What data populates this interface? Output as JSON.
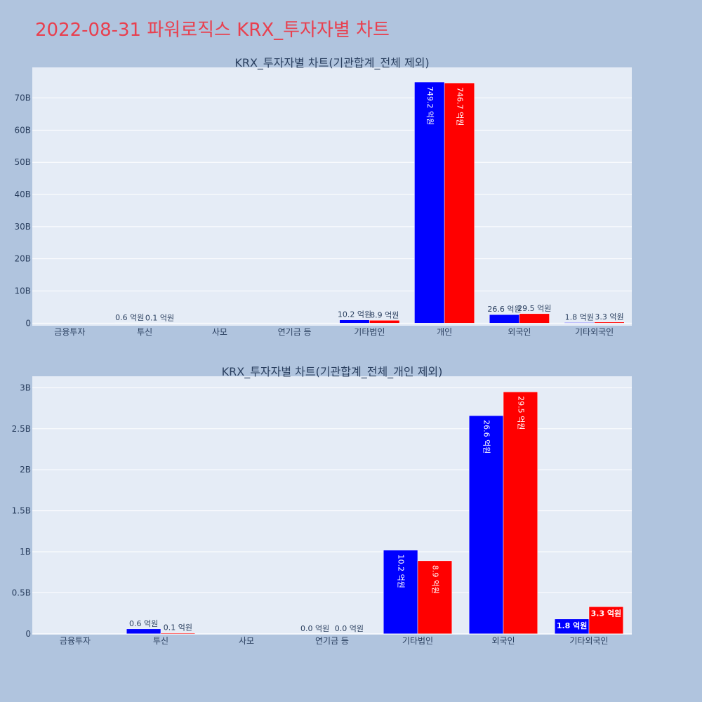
{
  "page_title": "2022-08-31 파워로직스 KRX_투자자별 차트",
  "colors": {
    "background": "#b0c4de",
    "plot_bg": "#e5ecf6",
    "series_buy": "#0000ff",
    "series_sell": "#ff0000",
    "title": "#e8404f"
  },
  "chart_data": [
    {
      "type": "bar",
      "title": "KRX_투자자별 차트(기관합계_전체 제외)",
      "categories": [
        "금융투자",
        "투신",
        "사모",
        "연기금 등",
        "기타법인",
        "개인",
        "외국인",
        "기타외국인"
      ],
      "ylim": [
        -0.8,
        79.5
      ],
      "yticks": [
        0,
        10,
        20,
        30,
        40,
        50,
        60,
        70
      ],
      "ytick_labels": [
        "0",
        "10B",
        "20B",
        "30B",
        "40B",
        "50B",
        "60B",
        "70B"
      ],
      "series": [
        {
          "values": [
            0,
            0.06,
            0,
            0,
            1.02,
            74.92,
            2.66,
            0.18
          ],
          "labels": [
            "",
            "0.6 억원",
            "",
            "",
            "10.2 억원",
            "749.2 억원",
            "26.6 억원",
            "1.8 억원"
          ]
        },
        {
          "values": [
            0,
            0.01,
            0,
            0,
            0.89,
            74.67,
            2.95,
            0.33
          ],
          "labels": [
            "",
            "0.1 억원",
            "",
            "",
            "8.9 억원",
            "746.7 억원",
            "29.5 억원",
            "3.3 억원"
          ]
        }
      ]
    },
    {
      "type": "bar",
      "title": "KRX_투자자별 차트(기관합계_전체_개인 제외)",
      "categories": [
        "금융투자",
        "투신",
        "사모",
        "연기금 등",
        "기타법인",
        "외국인",
        "기타외국인"
      ],
      "ylim": [
        -0.01,
        3.14
      ],
      "yticks": [
        0,
        0.5,
        1,
        1.5,
        2,
        2.5,
        3
      ],
      "ytick_labels": [
        "0",
        "0.5B",
        "1B",
        "1.5B",
        "2B",
        "2.5B",
        "3B"
      ],
      "series": [
        {
          "values": [
            0,
            0.06,
            0,
            0.0,
            1.02,
            2.66,
            0.18
          ],
          "labels": [
            "",
            "0.6 억원",
            "",
            "0.0 억원",
            "10.2 억원",
            "26.6 억원",
            "1.8 억원"
          ]
        },
        {
          "values": [
            0,
            0.01,
            0,
            0.0,
            0.89,
            2.95,
            0.33
          ],
          "labels": [
            "",
            "0.1 억원",
            "",
            "0.0 억원",
            "8.9 억원",
            "29.5 억원",
            "3.3 억원"
          ]
        }
      ]
    }
  ]
}
